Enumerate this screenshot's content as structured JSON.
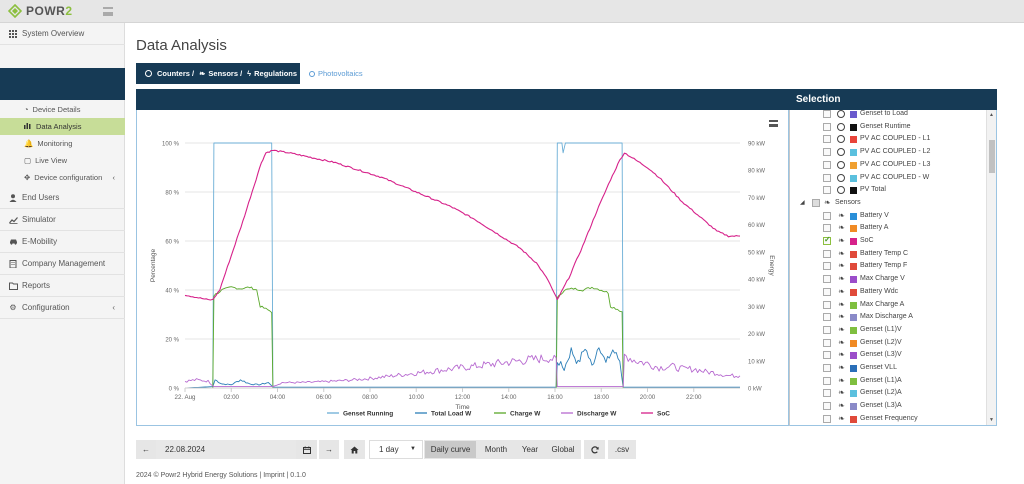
{
  "brand": {
    "name": "POWR",
    "name_accent": "2"
  },
  "sidebar": {
    "system_overview": "System Overview",
    "sub_items": [
      {
        "label": "Device Details",
        "icon": "dashboard-icon"
      },
      {
        "label": "Data Analysis",
        "icon": "bar-chart-icon",
        "active": true
      },
      {
        "label": "Monitoring",
        "icon": "bell-icon"
      },
      {
        "label": "Live View",
        "icon": "square-icon"
      },
      {
        "label": "Device configuration",
        "icon": "cog-icon"
      }
    ],
    "items": [
      {
        "label": "End Users",
        "icon": "user-icon"
      },
      {
        "label": "Simulator",
        "icon": "line-chart-icon"
      },
      {
        "label": "E-Mobility",
        "icon": "car-icon"
      },
      {
        "label": "Company Management",
        "icon": "building-icon"
      },
      {
        "label": "Reports",
        "icon": "folder-icon"
      },
      {
        "label": "Configuration",
        "icon": "cogs-icon"
      }
    ]
  },
  "page": {
    "title": "Data Analysis",
    "tab_active": "Counters /  Sensors /  Regulations",
    "tab_active_parts": [
      "Counters /",
      "Sensors /",
      "Regulations"
    ],
    "tab_other": "Photovoltaics"
  },
  "selection": {
    "title": "Selection",
    "counter_items": [
      {
        "label": "Genset to Load",
        "color": "#6a5acd",
        "checked": false
      },
      {
        "label": "Genset Runtime",
        "color": "#111111",
        "checked": false
      },
      {
        "label": "PV AC COUPLED - L1",
        "color": "#e8443a",
        "checked": false
      },
      {
        "label": "PV AC COUPLED - L2",
        "color": "#5bc0de",
        "checked": false
      },
      {
        "label": "PV AC COUPLED - L3",
        "color": "#f0a030",
        "checked": false
      },
      {
        "label": "PV AC COUPLED - W",
        "color": "#5bc0de",
        "checked": false
      },
      {
        "label": "PV Total",
        "color": "#111111",
        "checked": false
      }
    ],
    "sensors_label": "Sensors",
    "sensor_items": [
      {
        "label": "Battery V",
        "color": "#2a8fd8",
        "checked": false
      },
      {
        "label": "Battery A",
        "color": "#f08a24",
        "checked": false
      },
      {
        "label": "SoC",
        "color": "#d6218a",
        "checked": true
      },
      {
        "label": "Battery Temp C",
        "color": "#e04a3a",
        "checked": false
      },
      {
        "label": "Battery Temp F",
        "color": "#e04a3a",
        "checked": false
      },
      {
        "label": "Max Charge V",
        "color": "#9b4dca",
        "checked": false
      },
      {
        "label": "Battery Wdc",
        "color": "#e04a3a",
        "checked": false
      },
      {
        "label": "Max Charge A",
        "color": "#7fbf3f",
        "checked": false
      },
      {
        "label": "Max Discharge A",
        "color": "#8a8ac8",
        "checked": false
      },
      {
        "label": "Genset (L1)V",
        "color": "#7fbf3f",
        "checked": false
      },
      {
        "label": "Genset (L2)V",
        "color": "#f08a24",
        "checked": false
      },
      {
        "label": "Genset (L3)V",
        "color": "#9b4dca",
        "checked": false
      },
      {
        "label": "Genset VLL",
        "color": "#2a6fb8",
        "checked": false
      },
      {
        "label": "Genset (L1)A",
        "color": "#7fbf3f",
        "checked": false
      },
      {
        "label": "Genset (L2)A",
        "color": "#5bc0de",
        "checked": false
      },
      {
        "label": "Genset (L3)A",
        "color": "#8a8ac8",
        "checked": false
      },
      {
        "label": "Genset Frequency",
        "color": "#e04a3a",
        "checked": false
      }
    ]
  },
  "toolbar": {
    "prev": "←",
    "date": "22.08.2024",
    "calendar_icon": "calendar-icon",
    "next": "→",
    "home_icon": "home-icon",
    "range": "1 day",
    "views": [
      "Daily curve",
      "Month",
      "Year",
      "Global"
    ],
    "active_view": "Daily curve",
    "refresh_icon": "refresh-icon",
    "csv": ".csv"
  },
  "footer": "2024 © Powr2 Hybrid Energy Solutions | Imprint | 0.1.0",
  "chart_data": {
    "type": "line",
    "xlabel": "Time",
    "ylabel_left": "Percentage",
    "ylabel_right": "Energy",
    "x_ticks": [
      "22. Aug",
      "02:00",
      "04:00",
      "06:00",
      "08:00",
      "10:00",
      "12:00",
      "14:00",
      "16:00",
      "18:00",
      "20:00",
      "22:00"
    ],
    "y_left_ticks": [
      "0 %",
      "20 %",
      "40 %",
      "60 %",
      "80 %",
      "100 %"
    ],
    "y_right_ticks": [
      "0 kW",
      "10 kW",
      "20 kW",
      "30 kW",
      "40 kW",
      "50 kW",
      "60 kW",
      "70 kW",
      "80 kW",
      "90 kW"
    ],
    "xlim_hours": [
      0,
      24
    ],
    "ylim_left": [
      0,
      100
    ],
    "ylim_right": [
      0,
      90
    ],
    "series": [
      {
        "name": "Genset Running",
        "color": "#6baed6",
        "axis": "left",
        "points": [
          [
            0,
            0
          ],
          [
            1.2,
            0
          ],
          [
            1.25,
            100
          ],
          [
            3.75,
            100
          ],
          [
            3.8,
            0
          ],
          [
            16.05,
            0
          ],
          [
            16.1,
            100
          ],
          [
            16.3,
            100
          ],
          [
            16.35,
            96
          ],
          [
            16.45,
            100
          ],
          [
            18.9,
            100
          ],
          [
            18.95,
            0
          ],
          [
            24,
            0
          ]
        ]
      },
      {
        "name": "Total Load W",
        "color": "#2c7fb8",
        "axis": "right",
        "points": [
          [
            0,
            0
          ],
          [
            1.2,
            0.5
          ],
          [
            1.3,
            3
          ],
          [
            1.6,
            1.5
          ],
          [
            2,
            1.2
          ],
          [
            2.4,
            3
          ],
          [
            2.8,
            1.5
          ],
          [
            3.2,
            1.2
          ],
          [
            3.6,
            2
          ],
          [
            3.8,
            0.3
          ],
          [
            16.05,
            0.3
          ],
          [
            16.1,
            10
          ],
          [
            16.4,
            7
          ],
          [
            16.7,
            14
          ],
          [
            17,
            9
          ],
          [
            17.3,
            15
          ],
          [
            17.6,
            8
          ],
          [
            17.9,
            16
          ],
          [
            18.2,
            9
          ],
          [
            18.5,
            14
          ],
          [
            18.8,
            10
          ],
          [
            18.95,
            0.3
          ],
          [
            24,
            0.3
          ]
        ]
      },
      {
        "name": "Charge W",
        "color": "#5aa82a",
        "axis": "right",
        "points": [
          [
            0,
            0
          ],
          [
            1.2,
            0
          ],
          [
            1.25,
            34
          ],
          [
            1.6,
            36
          ],
          [
            2.0,
            37
          ],
          [
            2.4,
            36.5
          ],
          [
            2.8,
            37
          ],
          [
            3.1,
            36
          ],
          [
            3.25,
            30
          ],
          [
            3.5,
            29
          ],
          [
            3.75,
            28
          ],
          [
            3.8,
            0
          ],
          [
            16.05,
            0
          ],
          [
            16.1,
            33
          ],
          [
            16.4,
            36
          ],
          [
            16.8,
            36.5
          ],
          [
            17.2,
            36
          ],
          [
            17.6,
            37
          ],
          [
            18.0,
            36
          ],
          [
            18.3,
            35
          ],
          [
            18.4,
            30
          ],
          [
            18.7,
            29
          ],
          [
            18.9,
            28
          ],
          [
            18.95,
            0
          ],
          [
            24,
            0
          ]
        ]
      },
      {
        "name": "Discharge W",
        "color": "#b76ad0",
        "axis": "right",
        "points": [
          [
            0,
            2.5
          ],
          [
            0.5,
            3
          ],
          [
            1,
            2.5
          ],
          [
            1.25,
            0.5
          ],
          [
            3.8,
            0.5
          ],
          [
            4.2,
            2
          ],
          [
            5,
            2
          ],
          [
            6,
            2.3
          ],
          [
            7,
            2.8
          ],
          [
            8,
            3.5
          ],
          [
            9,
            4.5
          ],
          [
            10,
            5.5
          ],
          [
            11,
            6.5
          ],
          [
            12,
            7.5
          ],
          [
            13,
            8.5
          ],
          [
            14,
            9.5
          ],
          [
            15,
            10.5
          ],
          [
            15.8,
            11
          ],
          [
            16.05,
            10
          ],
          [
            16.1,
            0.5
          ],
          [
            18.95,
            0.5
          ],
          [
            19,
            12
          ],
          [
            19.5,
            10
          ],
          [
            20,
            9
          ],
          [
            20.5,
            7.5
          ],
          [
            21,
            8
          ],
          [
            21.5,
            7
          ],
          [
            22,
            7
          ],
          [
            22.5,
            6
          ],
          [
            23,
            5.5
          ],
          [
            23.5,
            4.5
          ],
          [
            24,
            4.5
          ]
        ]
      },
      {
        "name": "SoC",
        "color": "#d6218a",
        "axis": "left",
        "points": [
          [
            0,
            38
          ],
          [
            0.5,
            37
          ],
          [
            1,
            36
          ],
          [
            1.2,
            36
          ],
          [
            1.5,
            40
          ],
          [
            2.0,
            54
          ],
          [
            2.5,
            68
          ],
          [
            3.0,
            83
          ],
          [
            3.3,
            92
          ],
          [
            3.5,
            96
          ],
          [
            3.8,
            97
          ],
          [
            4.5,
            96
          ],
          [
            5.5,
            94
          ],
          [
            6.5,
            92
          ],
          [
            7.5,
            89
          ],
          [
            8.5,
            86
          ],
          [
            9.5,
            82
          ],
          [
            10.5,
            78
          ],
          [
            11.5,
            74
          ],
          [
            12.5,
            69
          ],
          [
            13.5,
            63
          ],
          [
            14.5,
            57
          ],
          [
            15.2,
            51
          ],
          [
            15.7,
            44
          ],
          [
            16.05,
            37
          ],
          [
            16.1,
            36
          ],
          [
            16.6,
            45
          ],
          [
            17.2,
            58
          ],
          [
            17.8,
            72
          ],
          [
            18.4,
            85
          ],
          [
            18.8,
            93
          ],
          [
            19.0,
            96
          ],
          [
            19.5,
            93
          ],
          [
            20,
            90
          ],
          [
            20.5,
            86
          ],
          [
            21,
            81
          ],
          [
            21.5,
            76
          ],
          [
            22,
            72
          ],
          [
            22.5,
            68
          ],
          [
            23,
            64
          ],
          [
            23.5,
            62
          ],
          [
            24,
            62
          ]
        ]
      }
    ],
    "legend": [
      "Genset Running",
      "Total Load W",
      "Charge W",
      "Discharge W",
      "SoC"
    ],
    "legend_position": "bottom"
  }
}
